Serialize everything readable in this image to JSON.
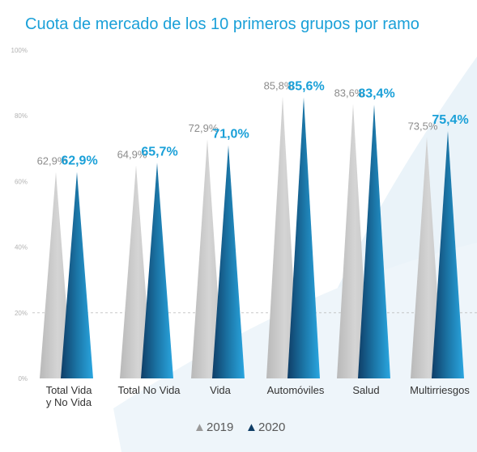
{
  "chart_data": {
    "type": "bar",
    "title": "Cuota de mercado de los 10 primeros grupos por ramo",
    "categories": [
      [
        "Total Vida",
        "y No Vida"
      ],
      [
        "Total No Vida"
      ],
      [
        "Vida"
      ],
      [
        "Automóviles"
      ],
      [
        "Salud"
      ],
      [
        "Multirriesgos"
      ]
    ],
    "series": [
      {
        "name": "2019",
        "values": [
          62.9,
          64.9,
          72.9,
          85.8,
          83.6,
          73.5
        ],
        "labels": [
          "62,9%",
          "64,9%",
          "72,9%",
          "85,8%",
          "83,6%",
          "73,5%"
        ],
        "color": "#c8c8c8"
      },
      {
        "name": "2020",
        "values": [
          62.9,
          65.7,
          71.0,
          85.6,
          83.4,
          75.4
        ],
        "labels": [
          "62,9%",
          "65,7%",
          "71,0%",
          "85,6%",
          "83,4%",
          "75,4%"
        ],
        "color": "#1a86b8"
      }
    ],
    "ylim": [
      0,
      100
    ],
    "yticks": [
      {
        "value": 0,
        "label": "0%"
      },
      {
        "value": 20,
        "label": "20%"
      },
      {
        "value": 40,
        "label": "40%"
      },
      {
        "value": 60,
        "label": "60%"
      },
      {
        "value": 80,
        "label": "80%"
      },
      {
        "value": 100,
        "label": "100%"
      }
    ],
    "legend": {
      "position": "bottom",
      "marker": "▲",
      "entries": [
        "2019",
        "2020"
      ]
    },
    "bar_shape": "triangle",
    "grid": "dashed line at 20%"
  }
}
